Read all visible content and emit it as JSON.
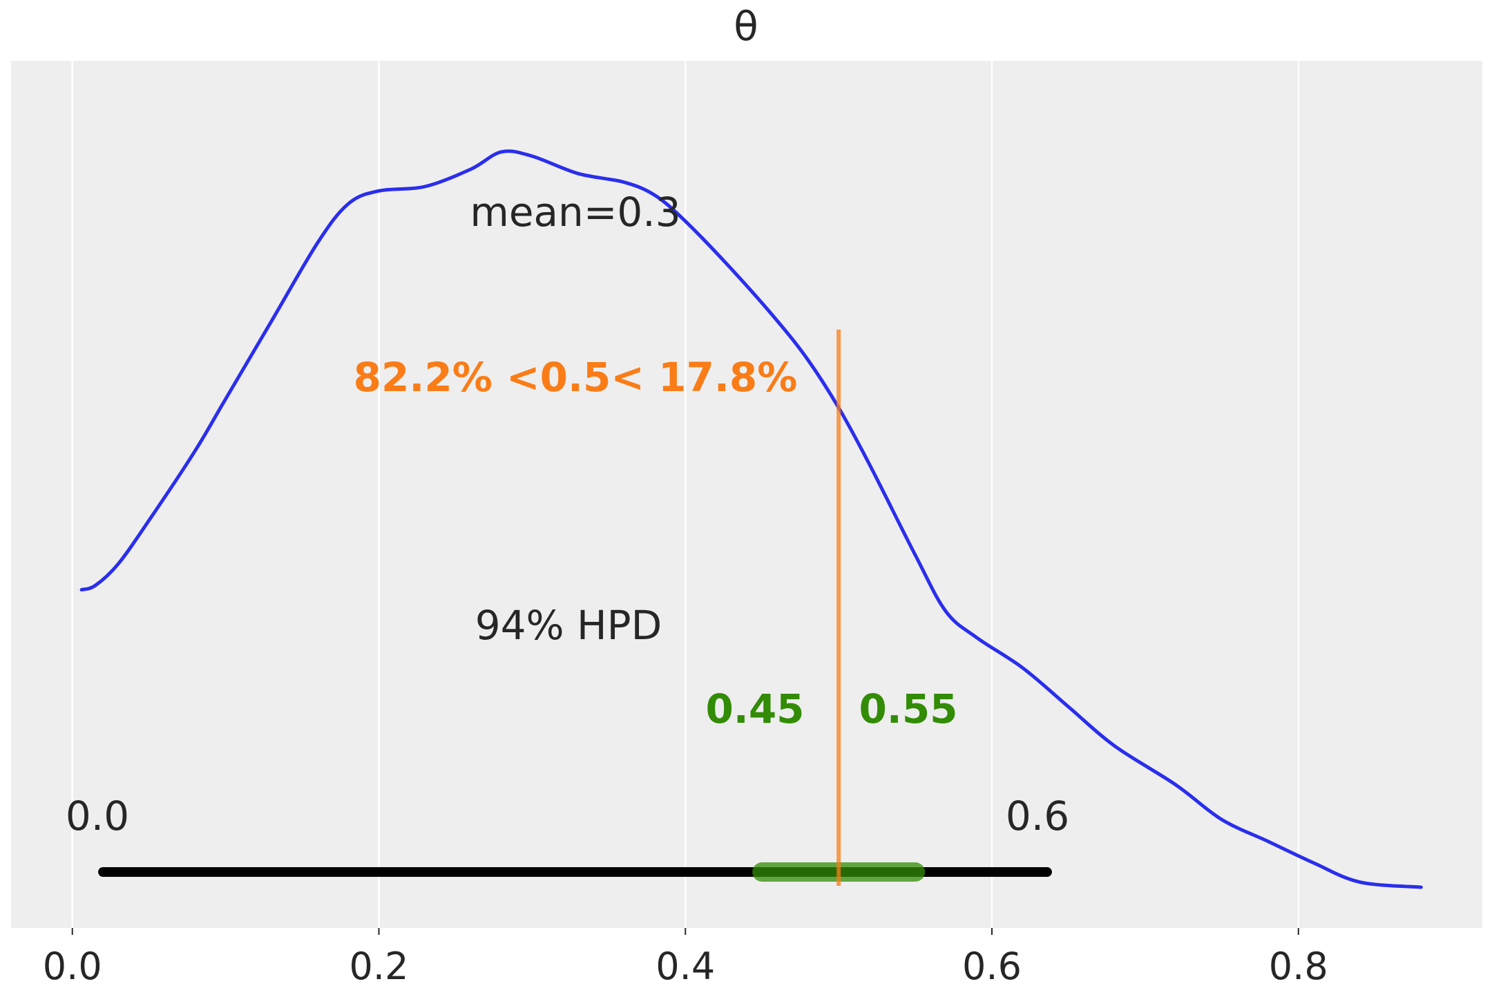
{
  "chart_data": {
    "type": "line",
    "title": "θ",
    "xlabel": "",
    "ylabel": "",
    "xlim": [
      -0.04,
      0.92
    ],
    "ylim": [
      0,
      1
    ],
    "grid": true,
    "x_ticks": [
      0.0,
      0.2,
      0.4,
      0.6,
      0.8
    ],
    "x_tick_labels": [
      "0.0",
      "0.2",
      "0.4",
      "0.6",
      "0.8"
    ],
    "series": [
      {
        "kind": "density",
        "x": [
          0.006,
          0.015,
          0.03,
          0.05,
          0.08,
          0.1,
          0.13,
          0.16,
          0.18,
          0.2,
          0.23,
          0.26,
          0.28,
          0.3,
          0.33,
          0.36,
          0.38,
          0.4,
          0.43,
          0.46,
          0.48,
          0.5,
          0.52,
          0.55,
          0.57,
          0.59,
          0.62,
          0.65,
          0.68,
          0.72,
          0.75,
          0.78,
          0.81,
          0.84,
          0.88
        ],
        "y": [
          0.39,
          0.395,
          0.42,
          0.47,
          0.55,
          0.61,
          0.7,
          0.79,
          0.835,
          0.85,
          0.855,
          0.875,
          0.895,
          0.89,
          0.87,
          0.86,
          0.845,
          0.815,
          0.76,
          0.7,
          0.655,
          0.6,
          0.535,
          0.43,
          0.365,
          0.335,
          0.3,
          0.255,
          0.21,
          0.165,
          0.125,
          0.1,
          0.075,
          0.053,
          0.047
        ],
        "color": "#2a2eec"
      }
    ],
    "mean_label": "mean=0.3",
    "reference": {
      "value": 0.5,
      "label": "82.2% <0.5< 17.8%",
      "color": "#fa7c17",
      "line_top": 0.69
    },
    "rope": {
      "low": 0.45,
      "high": 0.55,
      "low_label": "0.45",
      "high_label": "0.55",
      "color": "#328c06"
    },
    "hpd": {
      "low": 0.02,
      "high": 0.636,
      "label": "94% HPD",
      "low_label": "0.0",
      "high_label": "0.6",
      "color": "#000000"
    }
  },
  "colors": {
    "background": "#ffffff",
    "plot_area": "#eeeeee",
    "grid": "#ffffff",
    "text": "#262626"
  }
}
